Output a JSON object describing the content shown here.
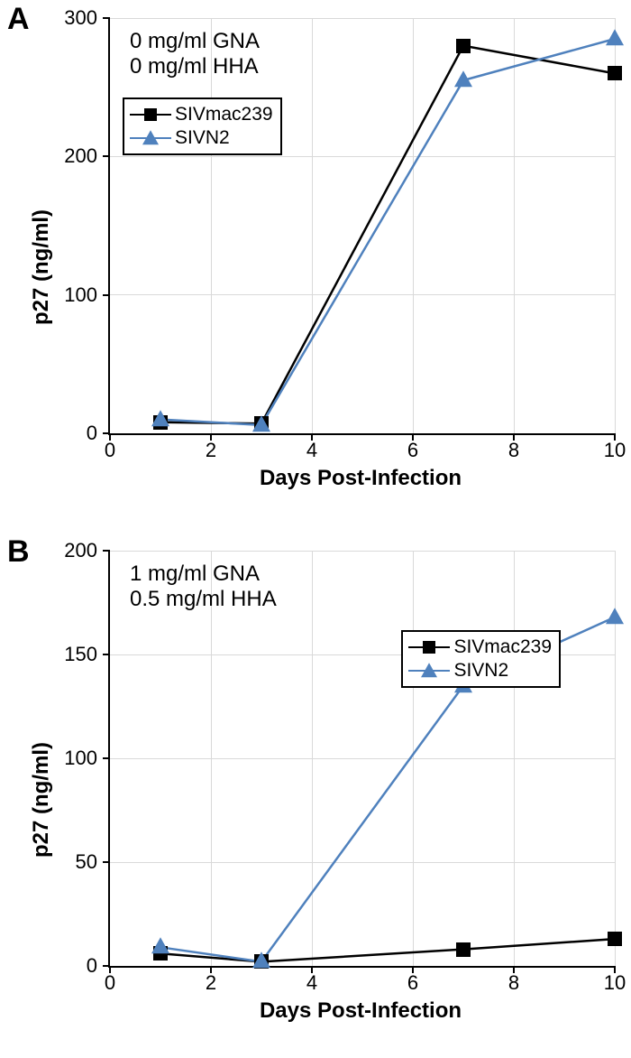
{
  "panel_labels": {
    "A": "A",
    "B": "B"
  },
  "chartA": {
    "type": "line",
    "annotation_line1": "0 mg/ml GNA",
    "annotation_line2": "0 mg/ml HHA",
    "xlabel": "Days Post-Infection",
    "ylabel": "p27 (ng/ml)",
    "xlim": [
      0,
      10
    ],
    "ylim": [
      0,
      300
    ],
    "xticks": [
      0,
      2,
      4,
      6,
      8,
      10
    ],
    "yticks": [
      0,
      100,
      200,
      300
    ],
    "grid_color": "#d9d9d9",
    "axis_color": "#000000",
    "background_color": "#ffffff",
    "label_fontsize": 22,
    "title_fontsize": 24,
    "line_width": 2.5,
    "marker_size": 16,
    "series": [
      {
        "name": "SIVmac239",
        "color": "#000000",
        "marker": "square",
        "x": [
          1,
          3,
          7,
          10
        ],
        "y": [
          8,
          7,
          280,
          260
        ]
      },
      {
        "name": "SIVN2",
        "color": "#4f81bd",
        "marker": "triangle",
        "x": [
          1,
          3,
          7,
          10
        ],
        "y": [
          10,
          6,
          255,
          285
        ]
      }
    ],
    "legend_position": "inside-left"
  },
  "chartB": {
    "type": "line",
    "annotation_line1": "1 mg/ml GNA",
    "annotation_line2": "0.5 mg/ml HHA",
    "xlabel": "Days Post-Infection",
    "ylabel": "p27 (ng/ml)",
    "xlim": [
      0,
      10
    ],
    "ylim": [
      0,
      200
    ],
    "xticks": [
      0,
      2,
      4,
      6,
      8,
      10
    ],
    "yticks": [
      0,
      50,
      100,
      150,
      200
    ],
    "grid_color": "#d9d9d9",
    "axis_color": "#000000",
    "background_color": "#ffffff",
    "label_fontsize": 22,
    "title_fontsize": 24,
    "line_width": 2.5,
    "marker_size": 16,
    "series": [
      {
        "name": "SIVmac239",
        "color": "#000000",
        "marker": "square",
        "x": [
          1,
          3,
          7,
          10
        ],
        "y": [
          6,
          2,
          8,
          13
        ]
      },
      {
        "name": "SIVN2",
        "color": "#4f81bd",
        "marker": "triangle",
        "x": [
          1,
          3,
          7,
          10
        ],
        "y": [
          9,
          2,
          135,
          168
        ]
      }
    ],
    "legend_position": "inside-right"
  }
}
